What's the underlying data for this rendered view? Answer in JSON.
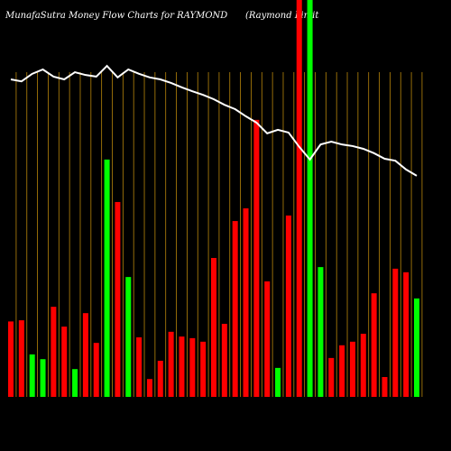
{
  "chart_data": {
    "type": "bar",
    "title": "MunafaSutra  Money Flow  Charts for RAYMOND",
    "subtitle": "(Raymond Limit",
    "categories": [
      null,
      null,
      null,
      null,
      null,
      null,
      null,
      null,
      null,
      null,
      null,
      null,
      null,
      null,
      null,
      null,
      null,
      null,
      null,
      null,
      null,
      null,
      null,
      null,
      null,
      null,
      null,
      null,
      null,
      null,
      null,
      null,
      null,
      null,
      null,
      null,
      null,
      null,
      null
    ],
    "values": [
      19.0,
      19.3,
      10.7,
      9.5,
      22.7,
      17.7,
      7.0,
      21.1,
      13.6,
      59.8,
      49.1,
      30.2,
      15.0,
      4.5,
      9.1,
      16.4,
      15.2,
      14.8,
      13.9,
      35.0,
      18.4,
      44.3,
      47.5,
      69.8,
      29.1,
      7.3,
      45.7,
      100,
      100,
      32.7,
      9.8,
      13.0,
      13.9,
      15.9,
      26.1,
      5.0,
      32.3,
      31.4,
      24.8
    ],
    "colors": [
      "#ff0000",
      "#ff0000",
      "#00ff00",
      "#00ff00",
      "#ff0000",
      "#ff0000",
      "#00ff00",
      "#ff0000",
      "#ff0000",
      "#00ff00",
      "#ff0000",
      "#00ff00",
      "#ff0000",
      "#ff0000",
      "#ff0000",
      "#ff0000",
      "#ff0000",
      "#ff0000",
      "#ff0000",
      "#ff0000",
      "#ff0000",
      "#ff0000",
      "#ff0000",
      "#ff0000",
      "#ff0000",
      "#00ff00",
      "#ff0000",
      "#ff0000",
      "#00ff00",
      "#00ff00",
      "#ff0000",
      "#ff0000",
      "#ff0000",
      "#ff0000",
      "#ff0000",
      "#ff0000",
      "#ff0000",
      "#ff0000",
      "#00ff00"
    ],
    "line": {
      "color": "#ffffff",
      "values": [
        80,
        79.5,
        81.4,
        82.5,
        80.7,
        80,
        81.8,
        81.1,
        80.7,
        83.4,
        80.5,
        82.5,
        81.4,
        80.5,
        80,
        79.1,
        78,
        77,
        76.1,
        75,
        73.6,
        72.5,
        70.7,
        69.1,
        66.4,
        67.3,
        66.6,
        63,
        59.8,
        63.6,
        64.3,
        63.6,
        63.2,
        62.5,
        61.4,
        60,
        59.5,
        57.3,
        55.7
      ]
    },
    "ylim": [
      0,
      100
    ],
    "grid_color": "#b8860b"
  }
}
